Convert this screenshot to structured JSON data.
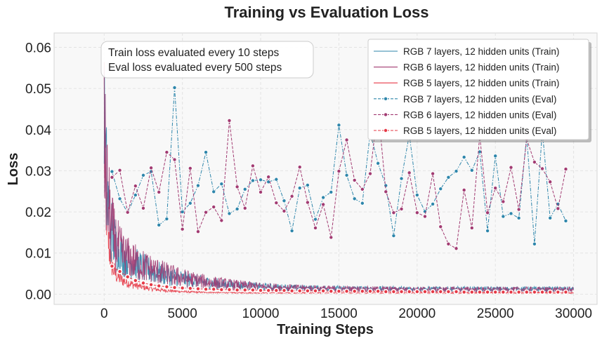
{
  "chart_data": {
    "type": "line",
    "title": "Training vs Evaluation Loss",
    "xlabel": "Training Steps",
    "ylabel": "Loss",
    "xlim": [
      -3200,
      31500
    ],
    "ylim": [
      -0.0025,
      0.0635
    ],
    "xticks": [
      0,
      5000,
      10000,
      15000,
      20000,
      25000,
      30000
    ],
    "xtick_labels": [
      "0",
      "5000",
      "10000",
      "15000",
      "20000",
      "25000",
      "30000"
    ],
    "yticks": [
      0.0,
      0.01,
      0.02,
      0.03,
      0.04,
      0.05,
      0.06
    ],
    "ytick_labels": [
      "0.00",
      "0.01",
      "0.02",
      "0.03",
      "0.04",
      "0.05",
      "0.06"
    ],
    "grid": true,
    "legend_position": "top-right",
    "annotation": [
      "Train loss evaluated every 10 steps",
      "Eval loss evaluated every 500 steps"
    ],
    "train_series": [
      {
        "name": "RGB 7 layers, 12 hidden units (Train)",
        "color": "#2e86ab",
        "step_interval": 10,
        "start_loss": 0.0605,
        "final_loss": 0.0012
      },
      {
        "name": "RGB 6 layers, 12 hidden units (Train)",
        "color": "#a23b72",
        "step_interval": 10,
        "start_loss": 0.0545,
        "final_loss": 0.0011
      },
      {
        "name": "RGB 5 layers, 12 hidden units (Train)",
        "color": "#e63946",
        "step_interval": 10,
        "start_loss": 0.0495,
        "final_loss": 0.0003
      }
    ],
    "eval_series": [
      {
        "name": "RGB 7 layers, 12 hidden units (Eval)",
        "color": "#2e86ab",
        "x": [
          500,
          1000,
          1500,
          2000,
          2500,
          3000,
          3500,
          4000,
          4500,
          5000,
          5500,
          6000,
          6500,
          7000,
          7500,
          8000,
          8500,
          9000,
          9500,
          10000,
          10500,
          11000,
          11500,
          12000,
          12500,
          13000,
          13500,
          14000,
          14500,
          15000,
          15500,
          16000,
          16500,
          17000,
          17500,
          18000,
          18500,
          19000,
          19500,
          20000,
          20500,
          21000,
          21500,
          22000,
          22500,
          23000,
          23500,
          24000,
          24500,
          25000,
          25500,
          26000,
          26500,
          27000,
          27500,
          28000,
          28500,
          29000,
          29500
        ],
        "y": [
          0.0298,
          0.0232,
          0.0198,
          0.0241,
          0.0289,
          0.0298,
          0.0168,
          0.0183,
          0.0502,
          0.02,
          0.0221,
          0.0264,
          0.0345,
          0.0249,
          0.0268,
          0.0196,
          0.0207,
          0.0255,
          0.0276,
          0.0278,
          0.0273,
          0.0279,
          0.0227,
          0.0154,
          0.0258,
          0.0265,
          0.0182,
          0.0235,
          0.0248,
          0.0411,
          0.0289,
          0.0232,
          0.0221,
          0.0394,
          0.0318,
          0.0264,
          0.0142,
          0.0281,
          0.0388,
          0.0241,
          0.0201,
          0.0219,
          0.0256,
          0.0284,
          0.0299,
          0.0333,
          0.0301,
          0.0346,
          0.0154,
          0.0336,
          0.0189,
          0.0196,
          0.0185,
          0.0385,
          0.0122,
          0.0398,
          0.0185,
          0.0219,
          0.0178
        ]
      },
      {
        "name": "RGB 6 layers, 12 hidden units (Eval)",
        "color": "#a23b72",
        "x": [
          500,
          1000,
          1500,
          2000,
          2500,
          3000,
          3500,
          4000,
          4500,
          5000,
          5500,
          6000,
          6500,
          7000,
          7500,
          8000,
          8500,
          9000,
          9500,
          10000,
          10500,
          11000,
          11500,
          12000,
          12500,
          13000,
          13500,
          14000,
          14500,
          15000,
          15500,
          16000,
          16500,
          17000,
          17500,
          18000,
          18500,
          19000,
          19500,
          20000,
          20500,
          21000,
          21500,
          22000,
          22500,
          23000,
          23500,
          24000,
          24500,
          25000,
          25500,
          26000,
          26500,
          27000,
          27500,
          28000,
          28500,
          29000,
          29500
        ],
        "y": [
          0.0284,
          0.0301,
          0.0199,
          0.0263,
          0.0209,
          0.0307,
          0.0248,
          0.0345,
          0.0327,
          0.0158,
          0.0306,
          0.0152,
          0.0199,
          0.0212,
          0.0179,
          0.0422,
          0.0261,
          0.0209,
          0.0312,
          0.0248,
          0.0285,
          0.0222,
          0.0202,
          0.0238,
          0.0309,
          0.0223,
          0.0161,
          0.0218,
          0.0138,
          0.0299,
          0.0375,
          0.0277,
          0.0255,
          0.0293,
          0.0455,
          0.0249,
          0.0198,
          0.0207,
          0.0295,
          0.0198,
          0.0189,
          0.0293,
          0.0164,
          0.0122,
          0.0111,
          0.0253,
          0.0161,
          0.0386,
          0.0198,
          0.0258,
          0.0225,
          0.0308,
          0.0206,
          0.0377,
          0.0321,
          0.0305,
          0.0273,
          0.0208,
          0.0304
        ]
      },
      {
        "name": "RGB 5 layers, 12 hidden units (Eval)",
        "color": "#e63946",
        "x": [
          500,
          1000,
          1500,
          2000,
          2500,
          3000,
          3500,
          4000,
          4500,
          5000,
          5500,
          6000,
          6500,
          7000,
          7500,
          8000,
          8500,
          9000,
          9500,
          10000,
          10500,
          11000,
          11500,
          12000,
          12500,
          13000,
          13500,
          14000,
          14500,
          15000,
          15500,
          16000,
          16500,
          17000,
          17500,
          18000,
          18500,
          19000,
          19500,
          20000,
          20500,
          21000,
          21500,
          22000,
          22500,
          23000,
          23500,
          24000,
          24500,
          25000,
          25500,
          26000,
          26500,
          27000,
          27500,
          28000,
          28500,
          29000,
          29500
        ],
        "y": [
          0.0068,
          0.0055,
          0.0042,
          0.0033,
          0.0027,
          0.0023,
          0.002,
          0.0018,
          0.0016,
          0.0015,
          0.0014,
          0.0013,
          0.0012,
          0.0012,
          0.0011,
          0.0011,
          0.001,
          0.001,
          0.001,
          0.0009,
          0.0009,
          0.0009,
          0.0009,
          0.0008,
          0.0008,
          0.0008,
          0.0008,
          0.0008,
          0.0007,
          0.0007,
          0.0007,
          0.0007,
          0.0007,
          0.0007,
          0.0007,
          0.0006,
          0.0006,
          0.0006,
          0.0006,
          0.0006,
          0.0006,
          0.0006,
          0.0006,
          0.0006,
          0.0006,
          0.0005,
          0.0005,
          0.0005,
          0.0005,
          0.0005,
          0.0005,
          0.0005,
          0.0005,
          0.0005,
          0.0005,
          0.0005,
          0.0005,
          0.0005,
          0.0005
        ]
      }
    ]
  }
}
